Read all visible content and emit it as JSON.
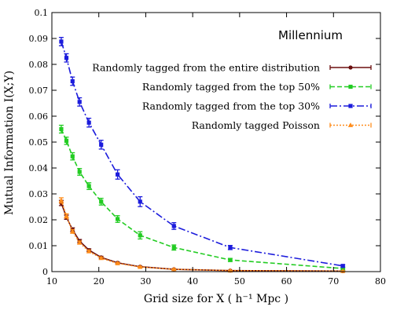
{
  "chart_data": {
    "type": "line",
    "title": "Millennium",
    "xlabel": "Grid size for X ( h⁻¹ Mpc )",
    "ylabel": "Mutual Information I(X;Y)",
    "xlim": [
      10,
      80
    ],
    "ylim": [
      0,
      0.1
    ],
    "xticks": [
      10,
      20,
      30,
      40,
      50,
      60,
      70,
      80
    ],
    "yticks": [
      0,
      0.01,
      0.02,
      0.03,
      0.04,
      0.05,
      0.06,
      0.07,
      0.08,
      0.09,
      0.1
    ],
    "x": [
      12,
      13.1,
      14.4,
      15.9,
      17.9,
      20.5,
      24,
      28.8,
      36,
      48,
      72
    ],
    "grid": false,
    "legend_position": "top-right",
    "series": [
      {
        "name": "Randomly tagged from the entire distribution",
        "color": "#6b0f0f",
        "dash": "solid",
        "marker": "circle",
        "values": [
          0.0265,
          0.021,
          0.0162,
          0.0118,
          0.0083,
          0.0055,
          0.0034,
          0.0019,
          0.0009,
          0.0004,
          0.0002
        ],
        "errors": [
          0.001,
          0.0008,
          0.0007,
          0.0006,
          0.0005,
          0.0004,
          0.0003,
          0.0002,
          0.0002,
          0.0001,
          0.0001
        ]
      },
      {
        "name": "Randomly tagged from the top 50%",
        "color": "#22cc22",
        "dash": "dash",
        "marker": "square",
        "values": [
          0.055,
          0.0505,
          0.0445,
          0.0385,
          0.033,
          0.027,
          0.0203,
          0.014,
          0.0093,
          0.0045,
          0.0012
        ],
        "errors": [
          0.0015,
          0.0014,
          0.0014,
          0.0013,
          0.0013,
          0.0013,
          0.0013,
          0.0014,
          0.001,
          0.0006,
          0.0003
        ]
      },
      {
        "name": "Randomly tagged from the top 30%",
        "color": "#1c1cdc",
        "dash": "dashdot",
        "marker": "square",
        "values": [
          0.0888,
          0.0825,
          0.0735,
          0.0655,
          0.0575,
          0.049,
          0.0375,
          0.027,
          0.0176,
          0.0093,
          0.0022
        ],
        "errors": [
          0.0016,
          0.0016,
          0.0016,
          0.0016,
          0.0017,
          0.0017,
          0.0018,
          0.0019,
          0.0013,
          0.0008,
          0.0004
        ]
      },
      {
        "name": "Randomly tagged Poisson",
        "color": "#ff8c1a",
        "dash": "dot",
        "marker": "triangle",
        "values": [
          0.0275,
          0.0215,
          0.0155,
          0.0112,
          0.0078,
          0.0052,
          0.0032,
          0.0018,
          0.0009,
          0.0004,
          0.0002
        ],
        "errors": [
          0.001,
          0.0008,
          0.0007,
          0.0006,
          0.0005,
          0.0004,
          0.0003,
          0.0002,
          0.0002,
          0.0001,
          0.0001
        ]
      }
    ]
  }
}
